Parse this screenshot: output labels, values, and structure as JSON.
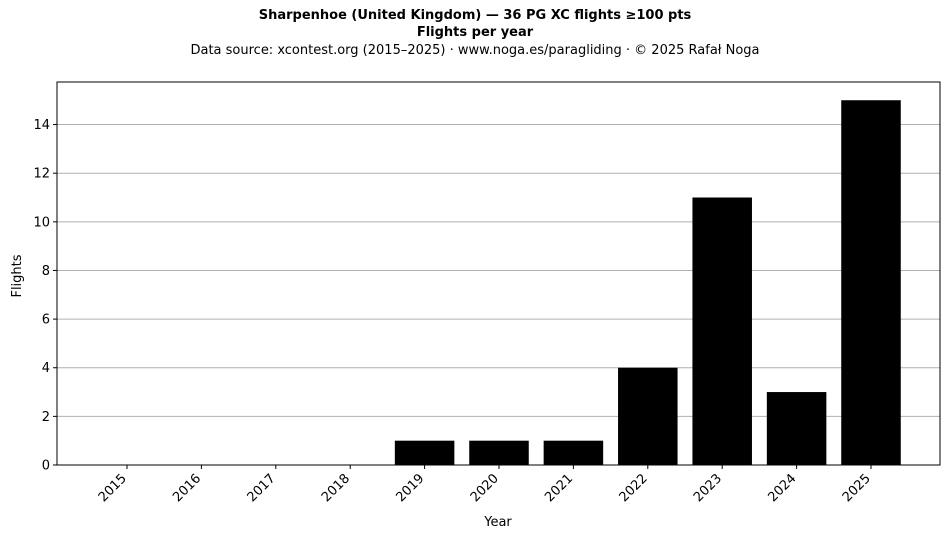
{
  "chart_data": {
    "type": "bar",
    "title": "Sharpenhoe (United Kingdom)  —  36 PG XC flights ≥100 pts",
    "subtitle": "Flights per year",
    "source_note": "Data source: xcontest.org (2015–2025)  ·  www.noga.es/paragliding  ·  © 2025 Rafał Noga",
    "xlabel": "Year",
    "ylabel": "Flights",
    "categories": [
      "2015",
      "2016",
      "2017",
      "2018",
      "2019",
      "2020",
      "2021",
      "2022",
      "2023",
      "2024",
      "2025"
    ],
    "values": [
      0,
      0,
      0,
      0,
      1,
      1,
      1,
      4,
      11,
      3,
      15
    ],
    "ylim": [
      0,
      15.75
    ],
    "yticks": [
      "0",
      "2",
      "4",
      "6",
      "8",
      "10",
      "12",
      "14"
    ],
    "grid": "y",
    "bar_color": "#000000",
    "grid_color": "#b0b0b0"
  }
}
